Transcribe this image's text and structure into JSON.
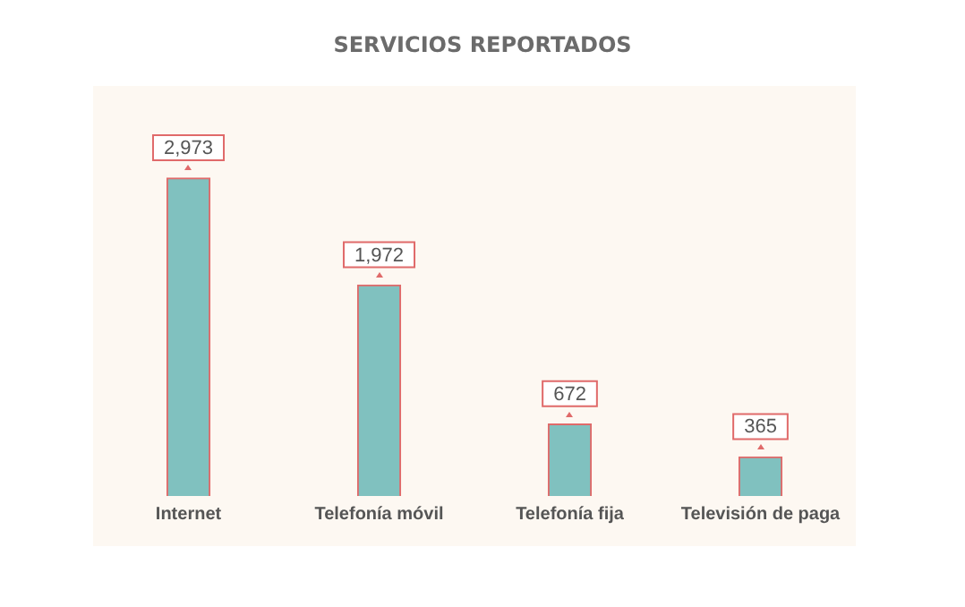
{
  "chart_data": {
    "type": "bar",
    "title": "SERVICIOS REPORTADOS",
    "categories": [
      "Internet",
      "Telefonía móvil",
      "Telefonía fija",
      "Televisión de paga"
    ],
    "values": [
      2973,
      1972,
      672,
      365
    ],
    "value_labels": [
      "2,973",
      "1,972",
      "672",
      "365"
    ],
    "color": "#80c1bf",
    "grid": false,
    "legend": false
  }
}
